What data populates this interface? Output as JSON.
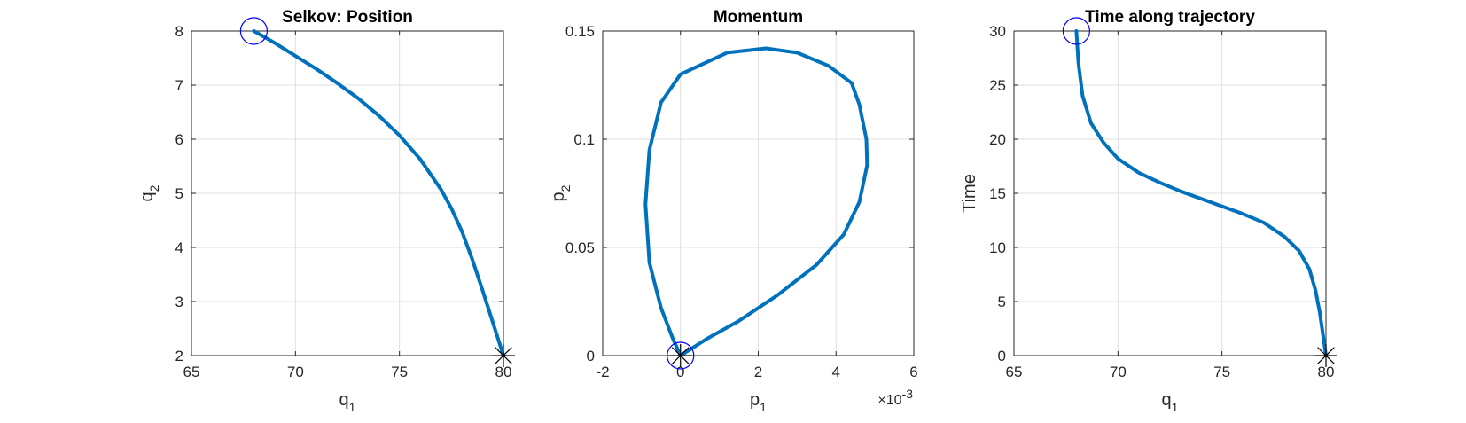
{
  "window": {
    "background": "#ffffff"
  },
  "style": {
    "line_color": "#0072bd",
    "start_marker_color": "#0000ff",
    "end_marker_color": "#000000",
    "grid_color": "#dfdfdf",
    "axis_color": "#262626"
  },
  "chart_data": [
    {
      "type": "line",
      "title": "Selkov: Position",
      "xlabel": {
        "main": "q",
        "sub": "1"
      },
      "ylabel": {
        "main": "q",
        "sub": "2"
      },
      "xlim": [
        65,
        80
      ],
      "ylim": [
        2,
        8
      ],
      "xticks": [
        65,
        70,
        75,
        80
      ],
      "yticks": [
        2,
        3,
        4,
        5,
        6,
        7,
        8
      ],
      "xtick_labels": [
        "65",
        "70",
        "75",
        "80"
      ],
      "ytick_labels": [
        "2",
        "3",
        "4",
        "5",
        "6",
        "7",
        "8"
      ],
      "grid": true,
      "series": [
        {
          "x": [
            68,
            69,
            70,
            71,
            72,
            73,
            74,
            75,
            76,
            77,
            77.5,
            78,
            78.5,
            79,
            79.5,
            80
          ],
          "y": [
            8,
            7.78,
            7.54,
            7.3,
            7.04,
            6.76,
            6.44,
            6.07,
            5.63,
            5.07,
            4.72,
            4.3,
            3.78,
            3.2,
            2.6,
            2
          ]
        }
      ],
      "start_marker": {
        "x": 68,
        "y": 8,
        "symbol": "circle"
      },
      "end_marker": {
        "x": 80,
        "y": 2,
        "symbol": "asterisk"
      }
    },
    {
      "type": "line",
      "title": "Momentum",
      "xlabel": {
        "main": "p",
        "sub": "1"
      },
      "ylabel": {
        "main": "p",
        "sub": "2"
      },
      "xlim": [
        -0.002,
        0.006
      ],
      "ylim": [
        0,
        0.15
      ],
      "xticks": [
        -0.002,
        0,
        0.002,
        0.004,
        0.006
      ],
      "yticks": [
        0,
        0.05,
        0.1,
        0.15
      ],
      "xtick_labels": [
        "-2",
        "0",
        "2",
        "4",
        "6"
      ],
      "ytick_labels": [
        "0",
        "0.05",
        "0.1",
        "0.15"
      ],
      "x_exponent": "-3",
      "grid": true,
      "series": [
        {
          "x": [
            0,
            0.0007,
            0.0015,
            0.0025,
            0.0035,
            0.0042,
            0.0046,
            0.0048,
            0.00478,
            0.0046,
            0.0044,
            0.0038,
            0.003,
            0.0022,
            0.0012,
            0,
            -0.0005,
            -0.0008,
            -0.0009,
            -0.0008,
            -0.0005,
            -0.0002,
            0
          ],
          "y": [
            0,
            0.008,
            0.016,
            0.028,
            0.042,
            0.056,
            0.071,
            0.088,
            0.1,
            0.116,
            0.126,
            0.134,
            0.14,
            0.142,
            0.14,
            0.13,
            0.117,
            0.095,
            0.07,
            0.043,
            0.022,
            0.008,
            0
          ]
        }
      ],
      "start_marker": {
        "x": 0,
        "y": 0,
        "symbol": "circle"
      },
      "end_marker": {
        "x": 0,
        "y": 0,
        "symbol": "asterisk"
      }
    },
    {
      "type": "line",
      "title": "Time along trajectory",
      "xlabel": {
        "main": "q",
        "sub": "1"
      },
      "ylabel": {
        "main": "Time",
        "sub": ""
      },
      "xlim": [
        65,
        80
      ],
      "ylim": [
        0,
        30
      ],
      "xticks": [
        65,
        70,
        75,
        80
      ],
      "yticks": [
        0,
        5,
        10,
        15,
        20,
        25,
        30
      ],
      "xtick_labels": [
        "65",
        "70",
        "75",
        "80"
      ],
      "ytick_labels": [
        "0",
        "5",
        "10",
        "15",
        "20",
        "25",
        "30"
      ],
      "grid": true,
      "series": [
        {
          "x": [
            68,
            68.1,
            68.3,
            68.7,
            69.3,
            70,
            71,
            72,
            73,
            74,
            75,
            76,
            77,
            78,
            78.7,
            79.2,
            79.5,
            79.7,
            79.85,
            80
          ],
          "y": [
            30,
            27,
            24,
            21.5,
            19.7,
            18.2,
            16.9,
            16,
            15.2,
            14.5,
            13.8,
            13.1,
            12.3,
            11,
            9.7,
            8,
            6,
            4,
            2,
            0
          ]
        }
      ],
      "start_marker": {
        "x": 68,
        "y": 30,
        "symbol": "circle"
      },
      "end_marker": {
        "x": 80,
        "y": 0,
        "symbol": "asterisk"
      }
    }
  ]
}
